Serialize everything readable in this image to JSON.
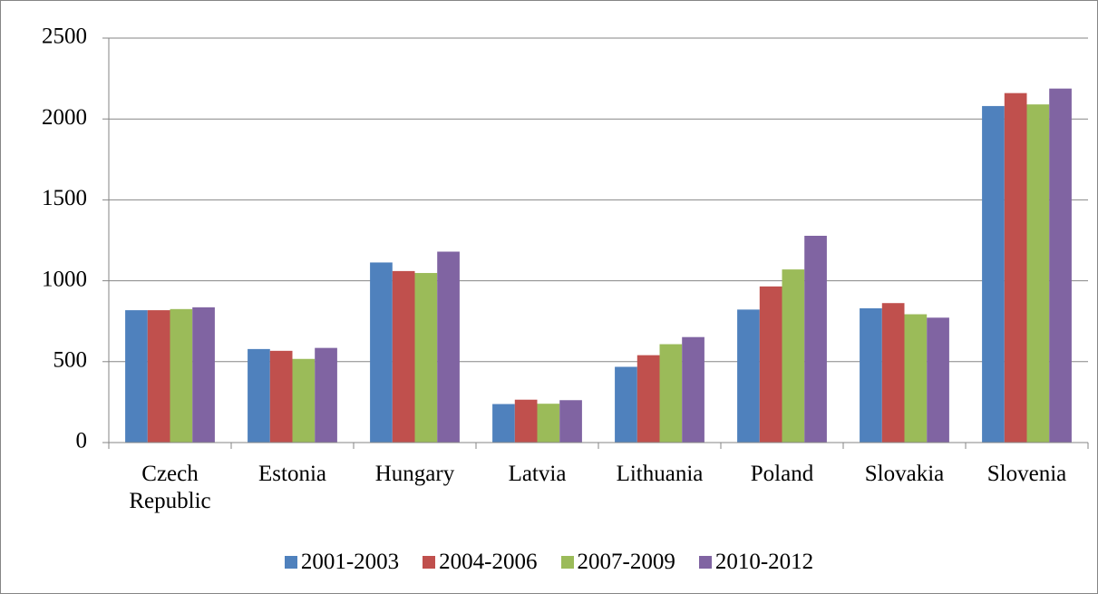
{
  "chart_data": {
    "type": "bar",
    "categories": [
      "Czech Republic",
      "Estonia",
      "Hungary",
      "Latvia",
      "Lithuania",
      "Poland",
      "Slovakia",
      "Slovenia"
    ],
    "series": [
      {
        "name": "2001-2003",
        "color": "#4f81bd",
        "values": [
          818,
          578,
          1113,
          238,
          468,
          822,
          830,
          2080
        ]
      },
      {
        "name": "2004-2006",
        "color": "#c0504d",
        "values": [
          818,
          567,
          1060,
          265,
          540,
          965,
          862,
          2160
        ]
      },
      {
        "name": "2007-2009",
        "color": "#9bbb59",
        "values": [
          825,
          517,
          1048,
          240,
          608,
          1070,
          793,
          2090
        ]
      },
      {
        "name": "2010-2012",
        "color": "#8064a2",
        "values": [
          836,
          585,
          1180,
          262,
          652,
          1278,
          772,
          2188
        ]
      }
    ],
    "ylim": [
      0,
      2500
    ],
    "yticks": [
      0,
      500,
      1000,
      1500,
      2000,
      2500
    ],
    "grid": true,
    "legend": "bottom"
  }
}
